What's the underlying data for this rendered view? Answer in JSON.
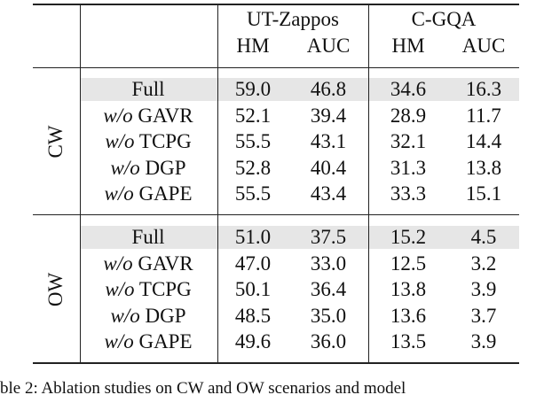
{
  "table": {
    "groups": [
      {
        "name": "UT-Zappos",
        "columns": [
          "HM",
          "AUC"
        ]
      },
      {
        "name": "C-GQA",
        "columns": [
          "HM",
          "AUC"
        ]
      }
    ],
    "sections": [
      {
        "label": "CW",
        "rows": [
          {
            "model": "Full",
            "values": [
              "59.0",
              "46.8",
              "34.6",
              "16.3"
            ]
          },
          {
            "prefix": "w/o",
            "model": "GAVR",
            "values": [
              "52.1",
              "39.4",
              "28.9",
              "11.7"
            ]
          },
          {
            "prefix": "w/o",
            "model": "TCPG",
            "values": [
              "55.5",
              "43.1",
              "32.1",
              "14.4"
            ]
          },
          {
            "prefix": "w/o",
            "model": "DGP",
            "values": [
              "52.8",
              "40.4",
              "31.3",
              "13.8"
            ]
          },
          {
            "prefix": "w/o",
            "model": "GAPE",
            "values": [
              "55.5",
              "43.4",
              "33.3",
              "15.1"
            ]
          }
        ]
      },
      {
        "label": "OW",
        "rows": [
          {
            "model": "Full",
            "values": [
              "51.0",
              "37.5",
              "15.2",
              "4.5"
            ]
          },
          {
            "prefix": "w/o",
            "model": "GAVR",
            "values": [
              "47.0",
              "33.0",
              "12.5",
              "3.2"
            ]
          },
          {
            "prefix": "w/o",
            "model": "TCPG",
            "values": [
              "50.1",
              "36.4",
              "13.8",
              "3.9"
            ]
          },
          {
            "prefix": "w/o",
            "model": "DGP",
            "values": [
              "48.5",
              "35.0",
              "13.6",
              "3.7"
            ]
          },
          {
            "prefix": "w/o",
            "model": "GAPE",
            "values": [
              "49.6",
              "36.0",
              "13.5",
              "3.9"
            ]
          }
        ]
      }
    ]
  },
  "caption": "ble 2: Ablation studies on CW and OW scenarios and model"
}
